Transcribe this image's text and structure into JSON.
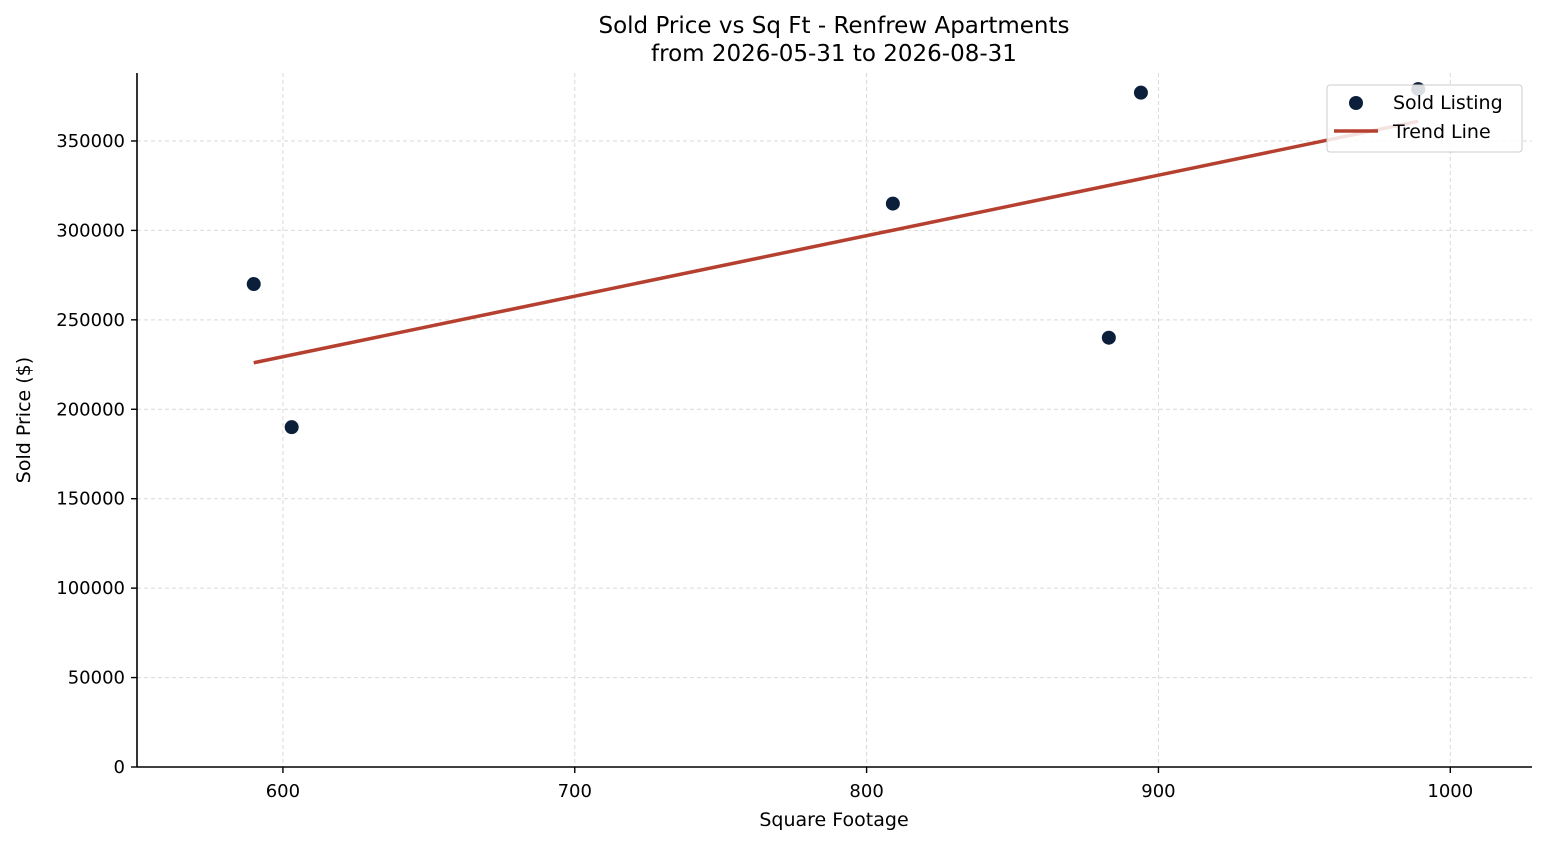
{
  "chart_data": {
    "type": "scatter",
    "title": "Sold Price vs Sq Ft - Renfrew Apartments",
    "subtitle": "from 2026-05-31 to 2026-08-31",
    "xlabel": "Square Footage",
    "ylabel": "Sold Price ($)",
    "xlim": [
      550,
      1028
    ],
    "ylim": [
      0,
      388000
    ],
    "xticks": [
      600,
      700,
      800,
      900,
      1000
    ],
    "yticks": [
      0,
      50000,
      100000,
      150000,
      200000,
      250000,
      300000,
      350000
    ],
    "grid": true,
    "legend_position": "top-right",
    "series": [
      {
        "name": "Sold Listing",
        "kind": "scatter",
        "color": "#0b1f3a",
        "x": [
          590,
          603,
          809,
          883,
          894,
          989
        ],
        "y": [
          270000,
          190000,
          315000,
          240000,
          377000,
          379000
        ]
      },
      {
        "name": "Trend Line",
        "kind": "line",
        "color": "#b5402f",
        "x": [
          590,
          989
        ],
        "y": [
          226000,
          361000
        ]
      }
    ]
  }
}
